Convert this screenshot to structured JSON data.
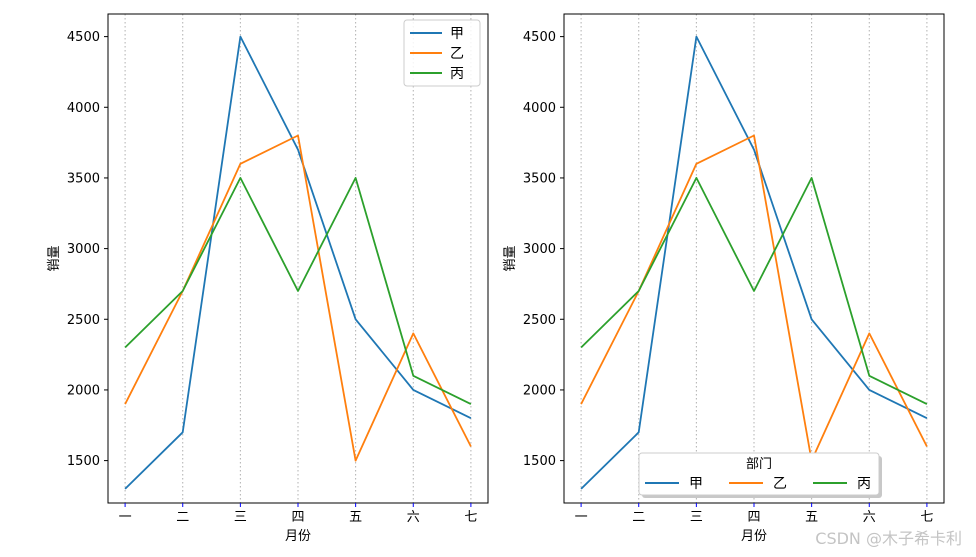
{
  "chart_data": [
    {
      "type": "line",
      "categories": [
        "一",
        "二",
        "三",
        "四",
        "五",
        "六",
        "七"
      ],
      "series": [
        {
          "name": "甲",
          "values": [
            1300,
            1700,
            4500,
            3700,
            2500,
            2000,
            1800
          ],
          "color": "#1f77b4"
        },
        {
          "name": "乙",
          "values": [
            1900,
            2700,
            3600,
            3800,
            1500,
            2400,
            1600
          ],
          "color": "#ff7f0e"
        },
        {
          "name": "丙",
          "values": [
            2300,
            2700,
            3500,
            2700,
            3500,
            2100,
            1900
          ],
          "color": "#2ca02c"
        }
      ],
      "xlabel": "月份",
      "ylabel": "销量",
      "ylim": [
        1200,
        4660
      ],
      "yticks": [
        1500,
        2000,
        2500,
        3000,
        3500,
        4000,
        4500
      ],
      "grid": "x-dotted",
      "legend": {
        "position": "top-right",
        "title": "",
        "ncol": 1
      }
    },
    {
      "type": "line",
      "categories": [
        "一",
        "二",
        "三",
        "四",
        "五",
        "六",
        "七"
      ],
      "series": [
        {
          "name": "甲",
          "values": [
            1300,
            1700,
            4500,
            3700,
            2500,
            2000,
            1800
          ],
          "color": "#1f77b4"
        },
        {
          "name": "乙",
          "values": [
            1900,
            2700,
            3600,
            3800,
            1500,
            2400,
            1600
          ],
          "color": "#ff7f0e"
        },
        {
          "name": "丙",
          "values": [
            2300,
            2700,
            3500,
            2700,
            3500,
            2100,
            1900
          ],
          "color": "#2ca02c"
        }
      ],
      "xlabel": "月份",
      "ylabel": "销量",
      "ylim": [
        1200,
        4660
      ],
      "yticks": [
        1500,
        2000,
        2500,
        3000,
        3500,
        4000,
        4500
      ],
      "grid": "x-dotted",
      "legend": {
        "position": "bottom-center",
        "title": "部门",
        "ncol": 3
      }
    }
  ],
  "watermark": "CSDN @木子希卡利"
}
